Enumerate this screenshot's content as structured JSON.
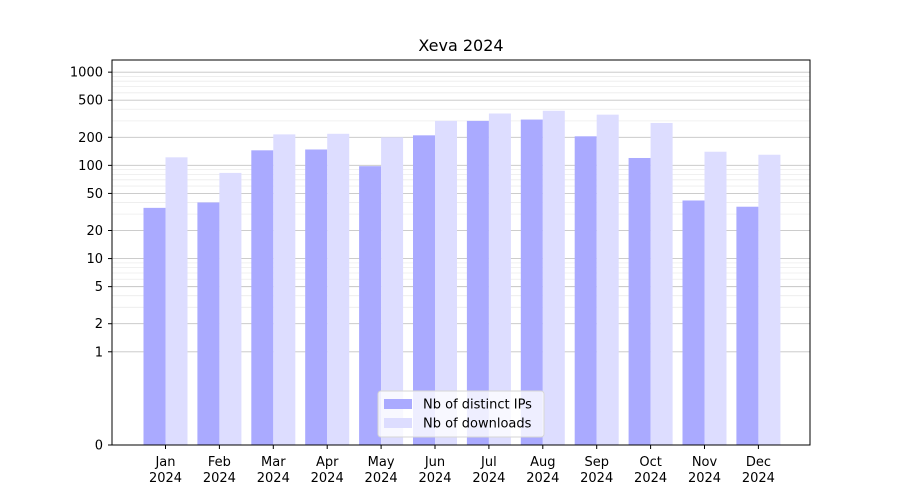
{
  "chart_data": {
    "type": "bar",
    "title": "Xeva 2024",
    "categories": [
      "Jan\n2024",
      "Feb\n2024",
      "Mar\n2024",
      "Apr\n2024",
      "May\n2024",
      "Jun\n2024",
      "Jul\n2024",
      "Aug\n2024",
      "Sep\n2024",
      "Oct\n2024",
      "Nov\n2024",
      "Dec\n2024"
    ],
    "series": [
      {
        "name": "Nb of distinct IPs",
        "color": "#aaaaff",
        "values": [
          35,
          40,
          145,
          148,
          98,
          210,
          300,
          310,
          205,
          120,
          42,
          36
        ]
      },
      {
        "name": "Nb of downloads",
        "color": "#ddddff",
        "values": [
          122,
          83,
          215,
          218,
          200,
          300,
          360,
          385,
          350,
          285,
          140,
          130
        ]
      }
    ],
    "xlabel": "",
    "ylabel": "",
    "y_scale": "symlog",
    "y_ticks": [
      0,
      1,
      2,
      5,
      10,
      20,
      50,
      100,
      200,
      500,
      1000
    ],
    "ylim": [
      0,
      1350
    ],
    "grid": true,
    "legend_position": "bottom-center"
  }
}
